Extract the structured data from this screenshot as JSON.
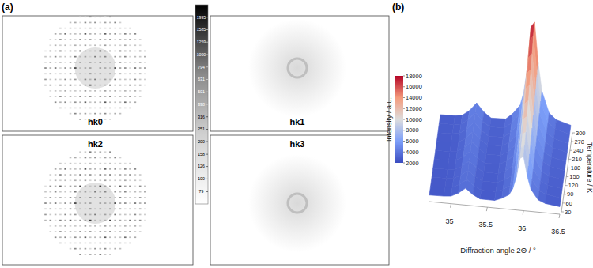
{
  "panel_a": {
    "panel_label": "(a)",
    "images": [
      {
        "label": "hk0"
      },
      {
        "label": "hk1"
      },
      {
        "label": "hk2"
      },
      {
        "label": "hk3"
      }
    ],
    "log": true,
    "color_range": [
      63,
      2512
    ],
    "color_ticks": [
      1995,
      1585,
      1259,
      1000,
      794,
      631,
      501,
      398,
      316,
      251,
      200,
      158,
      126,
      100,
      79
    ]
  },
  "chart_data": {
    "type": "surface",
    "panel_label": "(b)",
    "x_label": "Diffraction angle 2Θ / °",
    "y_label": "Temperature / K",
    "z_label": "Intensity / a.u.",
    "x": [
      34.7,
      34.9,
      35.0,
      35.1,
      35.2,
      35.3,
      35.4,
      35.6,
      35.7,
      35.8,
      35.85,
      35.9,
      35.95,
      36.0,
      36.05,
      36.1,
      36.2,
      36.3,
      36.5
    ],
    "y": [
      30,
      60,
      90,
      120,
      150,
      180,
      210,
      240,
      270,
      300
    ],
    "values": [
      [
        2600,
        2650,
        2750,
        3280,
        4100,
        3280,
        2750,
        2740,
        3150,
        3770,
        4670,
        6400,
        9160,
        9500,
        6740,
        4880,
        3430,
        3010,
        2740
      ],
      [
        2600,
        2650,
        2750,
        3280,
        4100,
        3280,
        2750,
        2740,
        3180,
        3820,
        4760,
        6560,
        9440,
        9800,
        6920,
        4980,
        3460,
        3030,
        2740
      ],
      [
        2650,
        2700,
        2800,
        3330,
        4150,
        3330,
        2800,
        2810,
        3280,
        3990,
        5010,
        6970,
        10110,
        10500,
        7360,
        5240,
        3590,
        3120,
        2810
      ],
      [
        2650,
        2700,
        2810,
        3370,
        4250,
        3370,
        2810,
        2830,
        3360,
        4160,
        5310,
        7520,
        11060,
        11500,
        7960,
        5570,
        3710,
        3180,
        2830
      ],
      [
        2700,
        2750,
        2870,
        3470,
        4400,
        3470,
        2870,
        2900,
        3480,
        4370,
        5640,
        8090,
        12010,
        12500,
        8580,
        5930,
        3880,
        3290,
        2900
      ],
      [
        2700,
        2750,
        2880,
        3510,
        4500,
        3510,
        2880,
        2920,
        3560,
        4540,
        5940,
        8640,
        12960,
        13500,
        9180,
        6260,
        4000,
        3350,
        2920
      ],
      [
        2750,
        2800,
        2940,
        3610,
        4650,
        3610,
        2940,
        2990,
        3690,
        4750,
        6280,
        9210,
        13910,
        14500,
        9800,
        6630,
        4160,
        3460,
        2990
      ],
      [
        2750,
        2800,
        2950,
        3650,
        4750,
        3650,
        2950,
        3010,
        3770,
        4920,
        6580,
        9760,
        14860,
        15500,
        10400,
        6960,
        4280,
        3520,
        3010
      ],
      [
        2800,
        2850,
        3010,
        3750,
        4900,
        3750,
        3010,
        3080,
        3920,
        5180,
        7000,
        10500,
        16100,
        16800,
        11200,
        7420,
        4480,
        3640,
        3080
      ],
      [
        2800,
        2850,
        3020,
        3790,
        5000,
        3790,
        3020,
        3090,
        3980,
        5300,
        7210,
        10890,
        16770,
        17500,
        11620,
        7650,
        4560,
        3680,
        3090
      ]
    ],
    "xlim": [
      34.7,
      36.5
    ],
    "xticks": [
      35,
      35.5,
      36,
      36.5
    ],
    "ylim": [
      30,
      300
    ],
    "yticks": [
      30,
      60,
      90,
      120,
      150,
      180,
      210,
      240,
      270,
      300
    ],
    "color_range": [
      2000,
      18000
    ],
    "color_ticks": [
      2000,
      4000,
      6000,
      8000,
      10000,
      12000,
      14000,
      16000,
      18000
    ]
  }
}
